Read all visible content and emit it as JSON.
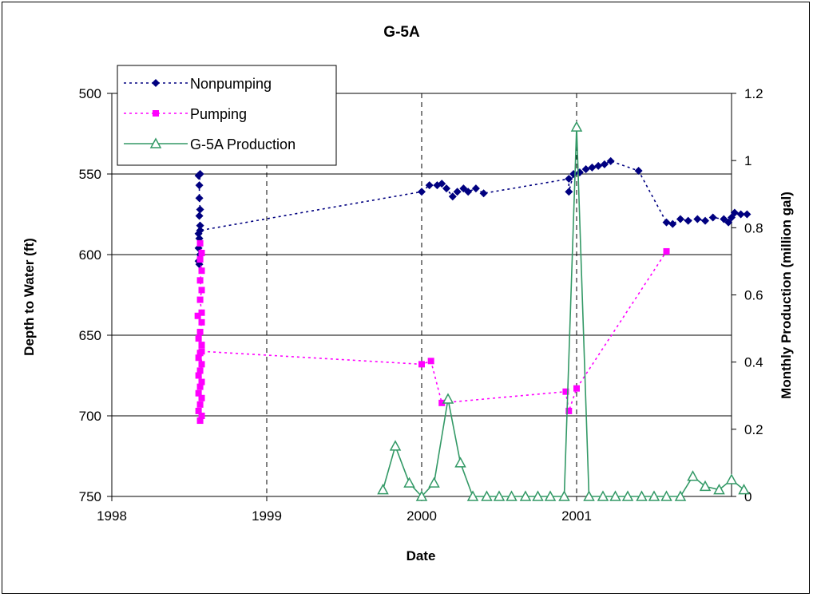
{
  "chart_data": {
    "type": "line",
    "title": "G-5A",
    "xlabel": "Date",
    "ylabel_left": "Depth to Water (ft)",
    "ylabel_right": "Monthly Production (million gal)",
    "x_ticks": [
      "1998",
      "1999",
      "2000",
      "2001"
    ],
    "x_range": [
      1998,
      2002
    ],
    "y_left_ticks": [
      "500",
      "550",
      "600",
      "650",
      "700",
      "750"
    ],
    "y_left_range": [
      500,
      750
    ],
    "y_left_reversed": true,
    "y_right_ticks": [
      "0",
      "0.2",
      "0.4",
      "0.6",
      "0.8",
      "1",
      "1.2"
    ],
    "y_right_range": [
      0,
      1.2
    ],
    "grid": "horizontal major gridlines; dashed vertical lines at 1999, 2000, 2001",
    "legend_position": "top-left",
    "series": [
      {
        "name": "Nonpumping",
        "axis": "left",
        "color": "#000080",
        "marker": "diamond",
        "line": "dotted",
        "points": [
          [
            1998.56,
            551
          ],
          [
            1998.57,
            550
          ],
          [
            1998.565,
            557
          ],
          [
            1998.565,
            565
          ],
          [
            1998.57,
            572
          ],
          [
            1998.565,
            576
          ],
          [
            1998.57,
            582
          ],
          [
            1998.56,
            587
          ],
          [
            1998.565,
            590
          ],
          [
            1998.56,
            596
          ],
          [
            1998.57,
            600
          ],
          [
            1998.56,
            604
          ],
          [
            1998.565,
            606
          ],
          [
            1998.57,
            585
          ],
          [
            2000.0,
            561
          ],
          [
            2000.05,
            557
          ],
          [
            2000.1,
            557
          ],
          [
            2000.13,
            556
          ],
          [
            2000.16,
            559
          ],
          [
            2000.2,
            564
          ],
          [
            2000.23,
            561
          ],
          [
            2000.27,
            559
          ],
          [
            2000.3,
            561
          ],
          [
            2000.35,
            559
          ],
          [
            2000.4,
            562
          ],
          [
            2000.95,
            553
          ],
          [
            2000.95,
            561
          ],
          [
            2000.98,
            550
          ],
          [
            2001.02,
            549
          ],
          [
            2001.06,
            547
          ],
          [
            2001.1,
            546
          ],
          [
            2001.14,
            545
          ],
          [
            2001.18,
            544
          ],
          [
            2001.22,
            542
          ],
          [
            2001.4,
            548
          ],
          [
            2001.58,
            580
          ],
          [
            2001.62,
            581
          ],
          [
            2001.67,
            578
          ],
          [
            2001.72,
            579
          ],
          [
            2001.78,
            578
          ],
          [
            2001.83,
            579
          ],
          [
            2001.88,
            577
          ],
          [
            2001.95,
            578
          ],
          [
            2001.98,
            580
          ],
          [
            2002.0,
            577
          ],
          [
            2002.02,
            574
          ],
          [
            2002.06,
            575
          ],
          [
            2002.1,
            575
          ]
        ]
      },
      {
        "name": "Pumping",
        "axis": "left",
        "color": "#ff00ff",
        "marker": "square",
        "line": "dotted",
        "points": [
          [
            1998.57,
            593
          ],
          [
            1998.58,
            599
          ],
          [
            1998.57,
            603
          ],
          [
            1998.58,
            610
          ],
          [
            1998.57,
            616
          ],
          [
            1998.58,
            622
          ],
          [
            1998.57,
            628
          ],
          [
            1998.58,
            636
          ],
          [
            1998.555,
            638
          ],
          [
            1998.58,
            642
          ],
          [
            1998.57,
            648
          ],
          [
            1998.56,
            652
          ],
          [
            1998.58,
            656
          ],
          [
            1998.57,
            661
          ],
          [
            1998.56,
            664
          ],
          [
            1998.58,
            668
          ],
          [
            1998.57,
            672
          ],
          [
            1998.56,
            675
          ],
          [
            1998.58,
            679
          ],
          [
            1998.57,
            682
          ],
          [
            1998.56,
            686
          ],
          [
            1998.58,
            689
          ],
          [
            1998.57,
            693
          ],
          [
            1998.56,
            697
          ],
          [
            1998.58,
            700
          ],
          [
            1998.57,
            703
          ],
          [
            1998.58,
            660
          ],
          [
            2000.0,
            668
          ],
          [
            2000.06,
            666
          ],
          [
            2000.13,
            692
          ],
          [
            2000.93,
            685
          ],
          [
            2000.95,
            697
          ],
          [
            2001.0,
            683
          ],
          [
            2001.58,
            598
          ]
        ]
      },
      {
        "name": "G-5A Production",
        "axis": "right",
        "color": "#339966",
        "marker": "triangle",
        "line": "solid",
        "points": [
          [
            1999.75,
            0.02
          ],
          [
            1999.83,
            0.15
          ],
          [
            1999.92,
            0.04
          ],
          [
            2000.0,
            0.0
          ],
          [
            2000.08,
            0.04
          ],
          [
            2000.17,
            0.29
          ],
          [
            2000.25,
            0.1
          ],
          [
            2000.33,
            0.0
          ],
          [
            2000.42,
            0.0
          ],
          [
            2000.5,
            0.0
          ],
          [
            2000.58,
            0.0
          ],
          [
            2000.67,
            0.0
          ],
          [
            2000.75,
            0.0
          ],
          [
            2000.83,
            0.0
          ],
          [
            2000.92,
            0.0
          ],
          [
            2001.0,
            1.1
          ],
          [
            2001.08,
            0.0
          ],
          [
            2001.17,
            0.0
          ],
          [
            2001.25,
            0.0
          ],
          [
            2001.33,
            0.0
          ],
          [
            2001.42,
            0.0
          ],
          [
            2001.5,
            0.0
          ],
          [
            2001.58,
            0.0
          ],
          [
            2001.67,
            0.0
          ],
          [
            2001.75,
            0.06
          ],
          [
            2001.83,
            0.03
          ],
          [
            2001.92,
            0.02
          ],
          [
            2002.0,
            0.05
          ],
          [
            2002.08,
            0.02
          ]
        ]
      }
    ]
  }
}
